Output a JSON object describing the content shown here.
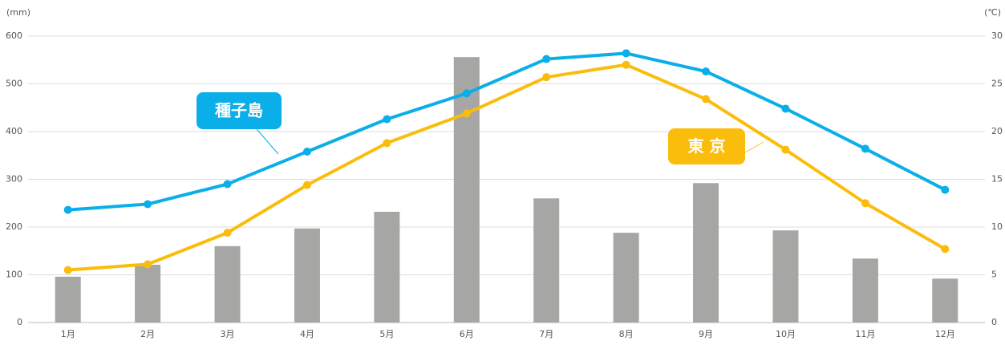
{
  "chart_data": {
    "type": "bar-line",
    "ylabel": "(mm)",
    "y2label": "(℃)",
    "categories": [
      "1月",
      "2月",
      "3月",
      "4月",
      "5月",
      "6月",
      "7月",
      "8月",
      "9月",
      "10月",
      "11月",
      "12月"
    ],
    "bars": {
      "color": "#a6a6a5",
      "values": [
        96,
        121,
        160,
        197,
        232,
        556,
        260,
        188,
        292,
        193,
        134,
        92
      ]
    },
    "series": [
      {
        "name": "種子島",
        "color": "#0aaee8",
        "axis": "y2",
        "values": [
          11.8,
          12.4,
          14.5,
          17.9,
          21.3,
          24.0,
          27.6,
          28.2,
          26.3,
          22.4,
          18.2,
          13.9
        ]
      },
      {
        "name": "東 京",
        "color": "#fbbd0c",
        "axis": "y2",
        "values": [
          5.5,
          6.1,
          9.4,
          14.4,
          18.8,
          21.9,
          25.7,
          27.0,
          23.4,
          18.1,
          12.5,
          7.7
        ]
      }
    ],
    "ylim": [
      0,
      600
    ],
    "yticks": [
      0,
      100,
      200,
      300,
      400,
      500,
      600
    ],
    "y2lim": [
      0,
      30
    ],
    "y2ticks": [
      0,
      5,
      10,
      15,
      20,
      25,
      30
    ],
    "grid": true
  }
}
